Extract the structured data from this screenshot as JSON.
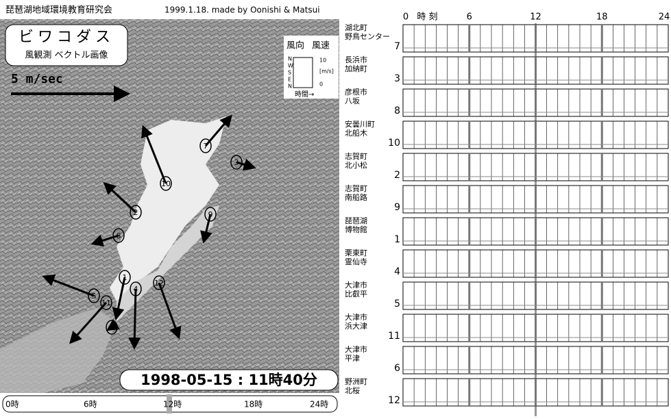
{
  "header": {
    "title": "琵琶湖地域環境教育研究会",
    "credit": "1999.1.18. made by Oonishi & Matsui"
  },
  "title_box": {
    "title": "ビワコダス",
    "subtitle": "風観測 ベクトル画像"
  },
  "scale_label": "5 m/sec",
  "legend": {
    "direction": "風向",
    "speed": "風速",
    "compass": [
      "N",
      "W",
      "S",
      "E",
      "N"
    ],
    "max": "10",
    "unit": "[m/s]",
    "min": "0",
    "time": "時間→"
  },
  "timestamp": "1998-05-15 : 11時40分",
  "timeline": [
    "0時",
    "6時",
    "12時",
    "18時",
    "24時"
  ],
  "time_axis": {
    "labels": [
      "0",
      "6",
      "12",
      "18",
      "24"
    ],
    "caption": "時 刻"
  },
  "map_markers": [
    "7",
    "3",
    "10",
    "2",
    "9",
    "8",
    "1",
    "4",
    "12",
    "5",
    "11",
    "6"
  ],
  "stations": [
    {
      "name": [
        "湖北町",
        "野鳥センター"
      ],
      "number": "7"
    },
    {
      "name": [
        "長浜市",
        "加納町"
      ],
      "number": "3"
    },
    {
      "name": [
        "彦根市",
        "八坂"
      ],
      "number": "8"
    },
    {
      "name": [
        "安曇川町",
        "北船木"
      ],
      "number": "10"
    },
    {
      "name": [
        "志賀町",
        "北小松"
      ],
      "number": "2"
    },
    {
      "name": [
        "志賀町",
        "南船路"
      ],
      "number": "9"
    },
    {
      "name": [
        "琵琶湖",
        "博物館"
      ],
      "number": "1"
    },
    {
      "name": [
        "栗東町",
        "霊仙寺"
      ],
      "number": "4"
    },
    {
      "name": [
        "大津市",
        "比叡平"
      ],
      "number": "5"
    },
    {
      "name": [
        "大津市",
        "浜大津"
      ],
      "number": "11"
    },
    {
      "name": [
        "大津市",
        "平津"
      ],
      "number": "6"
    },
    {
      "name": [
        "野洲町",
        "北桜"
      ],
      "number": "12"
    }
  ]
}
